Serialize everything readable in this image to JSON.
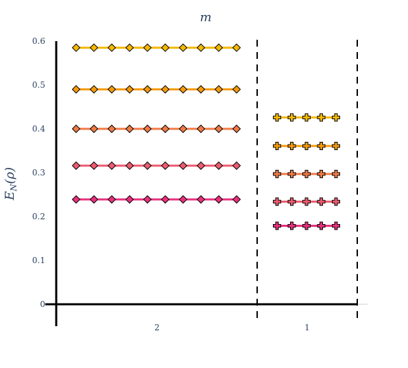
{
  "chart_data": {
    "type": "line",
    "title": "m",
    "ylabel": "E_N(ρ)",
    "ylabel_parts": {
      "main": "E",
      "sub": "N",
      "arg": "(ρ)"
    },
    "ylim": [
      0,
      0.6
    ],
    "yticks": [
      0,
      0.1,
      0.2,
      0.3,
      0.4,
      0.5,
      0.6
    ],
    "ytick_labels": [
      "0",
      "0.1",
      "0.2",
      "0.3",
      "0.4",
      "0.5",
      "0.6"
    ],
    "grid": false,
    "groups": [
      {
        "label": "2",
        "marker": "diamond",
        "n_points": 10,
        "series": [
          {
            "color": "#f5b800",
            "values": [
              0.585,
              0.585,
              0.585,
              0.585,
              0.585,
              0.585,
              0.585,
              0.585,
              0.585,
              0.585
            ]
          },
          {
            "color": "#f59a0a",
            "values": [
              0.49,
              0.49,
              0.49,
              0.49,
              0.49,
              0.49,
              0.49,
              0.49,
              0.49,
              0.49
            ]
          },
          {
            "color": "#f07a45",
            "values": [
              0.4,
              0.4,
              0.4,
              0.4,
              0.4,
              0.4,
              0.4,
              0.4,
              0.4,
              0.4
            ]
          },
          {
            "color": "#ec5a6e",
            "values": [
              0.316,
              0.316,
              0.316,
              0.316,
              0.316,
              0.316,
              0.316,
              0.316,
              0.316,
              0.316
            ]
          },
          {
            "color": "#e8307e",
            "values": [
              0.239,
              0.239,
              0.239,
              0.239,
              0.239,
              0.239,
              0.239,
              0.239,
              0.239,
              0.239
            ]
          }
        ]
      },
      {
        "label": "1",
        "marker": "cross",
        "n_points": 5,
        "series": [
          {
            "color": "#f5b800",
            "values": [
              0.426,
              0.426,
              0.426,
              0.426,
              0.426
            ]
          },
          {
            "color": "#f59a0a",
            "values": [
              0.361,
              0.361,
              0.361,
              0.361,
              0.361
            ]
          },
          {
            "color": "#f07a45",
            "values": [
              0.297,
              0.297,
              0.297,
              0.297,
              0.297
            ]
          },
          {
            "color": "#ec5a6e",
            "values": [
              0.234,
              0.234,
              0.234,
              0.234,
              0.234
            ]
          },
          {
            "color": "#e8307e",
            "values": [
              0.179,
              0.179,
              0.179,
              0.179,
              0.179
            ]
          }
        ]
      }
    ]
  }
}
